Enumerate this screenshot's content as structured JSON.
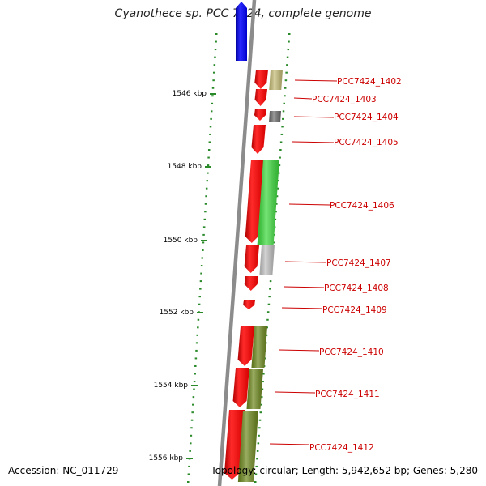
{
  "title": "Cyanothece sp. PCC 7424, complete genome",
  "footer": {
    "accession": "Accession: NC_011729",
    "summary": "Topology: circular; Length: 5,942,652 bp; Genes: 5,280"
  },
  "colors": {
    "backbone": "#8c8c8c",
    "tick": "#2a8a2a",
    "forward_gene": "#ff0000",
    "reverse_gene": "#0000ff",
    "label": "#cc0000"
  },
  "scale_labels": [
    {
      "position_kbp": 1546,
      "text": "1546 kbp"
    },
    {
      "position_kbp": 1548,
      "text": "1548 kbp"
    },
    {
      "position_kbp": 1550,
      "text": "1550 kbp"
    },
    {
      "position_kbp": 1552,
      "text": "1552 kbp"
    },
    {
      "position_kbp": 1554,
      "text": "1554 kbp"
    },
    {
      "position_kbp": 1556,
      "text": "1556 kbp"
    }
  ],
  "genes": [
    {
      "id": "PCC7424_1402",
      "label": "PCC7424_1402",
      "color": "#ff0000",
      "annot_color": "#c8bf7a"
    },
    {
      "id": "PCC7424_1403",
      "label": "PCC7424_1403",
      "color": "#ff0000",
      "annot_color": ""
    },
    {
      "id": "PCC7424_1404",
      "label": "PCC7424_1404",
      "color": "#ff0000",
      "annot_color": "#707070"
    },
    {
      "id": "PCC7424_1405",
      "label": "PCC7424_1405",
      "color": "#ff0000",
      "annot_color": ""
    },
    {
      "id": "PCC7424_1406",
      "label": "PCC7424_1406",
      "color": "#ff0000",
      "annot_color": "#3ddb3d"
    },
    {
      "id": "PCC7424_1407",
      "label": "PCC7424_1407",
      "color": "#ff0000",
      "annot_color": "#c4c4c4"
    },
    {
      "id": "PCC7424_1408",
      "label": "PCC7424_1408",
      "color": "#ff0000",
      "annot_color": ""
    },
    {
      "id": "PCC7424_1409",
      "label": "PCC7424_1409",
      "color": "#ff0000",
      "annot_color": ""
    },
    {
      "id": "PCC7424_1410",
      "label": "PCC7424_1410",
      "color": "#ff0000",
      "annot_color": "#6f8a1f"
    },
    {
      "id": "PCC7424_1411",
      "label": "PCC7424_1411",
      "color": "#ff0000",
      "annot_color": "#6f8a1f"
    },
    {
      "id": "PCC7424_1412",
      "label": "PCC7424_1412",
      "color": "#ff0000",
      "annot_color": "#6f8a1f"
    }
  ],
  "reverse_gene": {
    "color": "#0000ff"
  }
}
